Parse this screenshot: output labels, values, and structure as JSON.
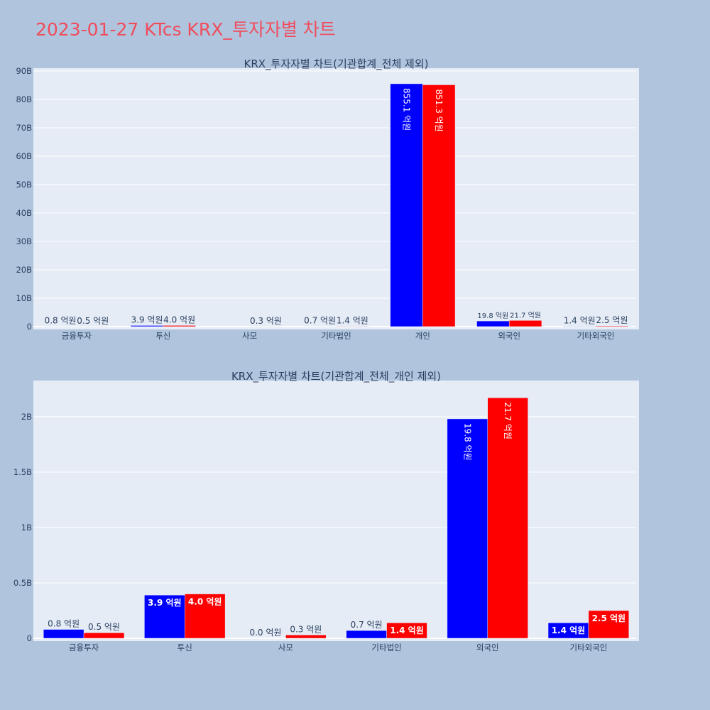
{
  "title": "2023-01-27 KTcs KRX_투자자별 차트",
  "colors": {
    "buy": "#0000ff",
    "sell": "#ff0000",
    "plot_bg": "#e5ecf6",
    "page_bg": "#b0c4de",
    "title": "#ef4d5c"
  },
  "chart_data": [
    {
      "type": "bar",
      "title": "KRX_투자자별 차트(기관합계_전체 제외)",
      "categories": [
        "금융투자",
        "투신",
        "사모",
        "기타법인",
        "개인",
        "외국인",
        "기타외국인"
      ],
      "series": [
        {
          "values": [
            80000000,
            390000000,
            0,
            70000000,
            85510000000,
            1980000000,
            140000000
          ],
          "labels": [
            "0.8 억원",
            "3.9 억원",
            "",
            "0.7 억원",
            "855.1 억원",
            "19.8 억원",
            "1.4 억원"
          ]
        },
        {
          "values": [
            50000000,
            400000000,
            30000000,
            140000000,
            85130000000,
            2170000000,
            250000000
          ],
          "labels": [
            "0.5 억원",
            "4.0 억원",
            "0.3 억원",
            "1.4 억원",
            "851.3 억원",
            "21.7 억원",
            "2.5 억원"
          ]
        }
      ],
      "ylim": [
        0,
        90000000000
      ],
      "yticks": [
        0,
        10000000000,
        20000000000,
        30000000000,
        40000000000,
        50000000000,
        60000000000,
        70000000000,
        80000000000,
        90000000000
      ],
      "ytick_labels": [
        "0",
        "10B",
        "20B",
        "30B",
        "40B",
        "50B",
        "60B",
        "70B",
        "80B",
        "90B"
      ],
      "xlabel": "",
      "ylabel": "",
      "grid": true
    },
    {
      "type": "bar",
      "title": "KRX_투자자별 차트(기관합계_전체_개인 제외)",
      "categories": [
        "금융투자",
        "투신",
        "사모",
        "기타법인",
        "외국인",
        "기타외국인"
      ],
      "series": [
        {
          "values": [
            80000000,
            390000000,
            0,
            70000000,
            1980000000,
            140000000
          ],
          "labels": [
            "0.8 억원",
            "3.9 억원",
            "0.0 억원",
            "0.7 억원",
            "19.8 억원",
            "1.4 억원"
          ]
        },
        {
          "values": [
            50000000,
            400000000,
            30000000,
            140000000,
            2170000000,
            250000000
          ],
          "labels": [
            "0.5 억원",
            "4.0 억원",
            "0.3 억원",
            "1.4 억원",
            "21.7 억원",
            "2.5 억원"
          ]
        }
      ],
      "ylim": [
        0,
        2300000000
      ],
      "yticks": [
        0,
        500000000,
        1000000000,
        1500000000,
        2000000000
      ],
      "ytick_labels": [
        "0",
        "0.5B",
        "1B",
        "1.5B",
        "2B"
      ],
      "xlabel": "",
      "ylabel": "",
      "grid": true
    }
  ]
}
